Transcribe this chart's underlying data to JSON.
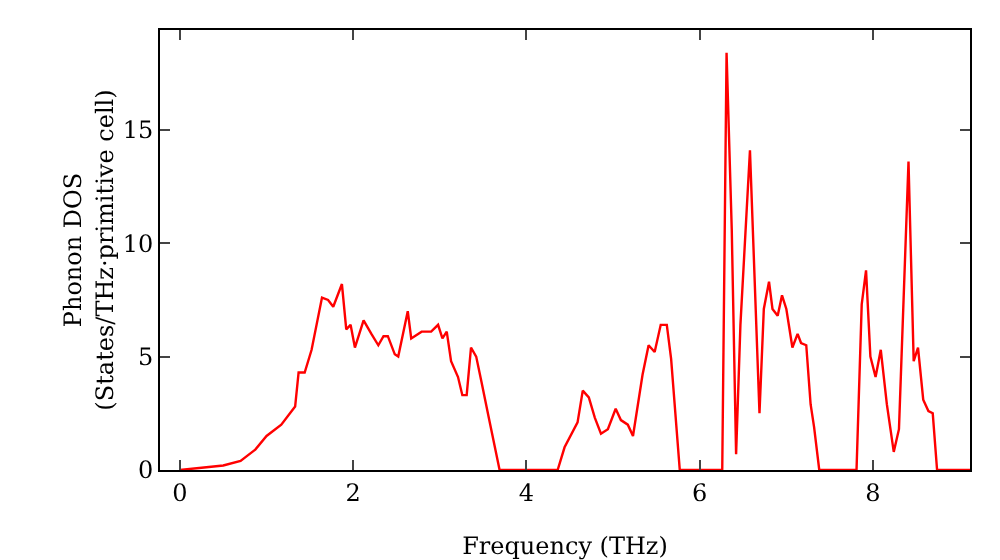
{
  "chart_data": {
    "type": "line",
    "xlabel": "Frequency (THz)",
    "ylabel": "Phonon DOS\n(States/THz·primitive cell)",
    "x": [
      0,
      0.25,
      0.5,
      0.7,
      0.87,
      1.0,
      1.17,
      1.33,
      1.37,
      1.44,
      1.52,
      1.64,
      1.71,
      1.77,
      1.87,
      1.92,
      1.97,
      2.02,
      2.12,
      2.21,
      2.29,
      2.35,
      2.4,
      2.48,
      2.52,
      2.63,
      2.67,
      2.79,
      2.9,
      2.98,
      3.03,
      3.08,
      3.13,
      3.21,
      3.26,
      3.31,
      3.36,
      3.42,
      3.48,
      3.56,
      3.69,
      4.36,
      4.44,
      4.59,
      4.65,
      4.72,
      4.79,
      4.86,
      4.94,
      5.03,
      5.09,
      5.17,
      5.23,
      5.34,
      5.41,
      5.48,
      5.55,
      5.62,
      5.67,
      5.77,
      6.26,
      6.31,
      6.37,
      6.42,
      6.47,
      6.58,
      6.69,
      6.74,
      6.8,
      6.84,
      6.9,
      6.95,
      7.0,
      7.07,
      7.13,
      7.17,
      7.23,
      7.28,
      7.32,
      7.38,
      7.81,
      7.87,
      7.92,
      7.97,
      8.03,
      8.09,
      8.16,
      8.24,
      8.3,
      8.41,
      8.47,
      8.52,
      8.58,
      8.64,
      8.69,
      8.74,
      9.12
    ],
    "series": [
      {
        "color": "#ff0000",
        "values": [
          0,
          0.1,
          0.2,
          0.4,
          0.9,
          1.5,
          2.0,
          2.8,
          4.3,
          4.3,
          5.3,
          7.6,
          7.5,
          7.2,
          8.2,
          6.2,
          6.4,
          5.4,
          6.6,
          6.0,
          5.5,
          5.9,
          5.9,
          5.1,
          5.0,
          7.0,
          5.8,
          6.1,
          6.1,
          6.4,
          5.8,
          6.1,
          4.8,
          4.1,
          3.3,
          3.3,
          5.4,
          5.0,
          3.9,
          2.4,
          0,
          0,
          1.0,
          2.1,
          3.5,
          3.2,
          2.3,
          1.6,
          1.8,
          2.7,
          2.2,
          2.0,
          1.5,
          4.2,
          5.5,
          5.2,
          6.4,
          6.4,
          4.9,
          0,
          0,
          18.4,
          10.6,
          0.7,
          6.4,
          14.1,
          2.5,
          7.1,
          8.3,
          7.1,
          6.8,
          7.7,
          7.1,
          5.4,
          6.0,
          5.6,
          5.5,
          2.9,
          1.9,
          0,
          0,
          7.3,
          8.8,
          5.0,
          4.1,
          5.3,
          2.9,
          0.8,
          1.8,
          13.6,
          4.8,
          5.4,
          3.1,
          2.6,
          2.5,
          0,
          0
        ]
      }
    ],
    "xlim": [
      -0.23,
      9.12
    ],
    "ylim": [
      0,
      19.4
    ],
    "xticks": [
      0,
      2,
      4,
      6,
      8
    ],
    "yticks": [
      0,
      5,
      10,
      15
    ],
    "grid": false,
    "marker": "none",
    "line_style": "solid"
  }
}
